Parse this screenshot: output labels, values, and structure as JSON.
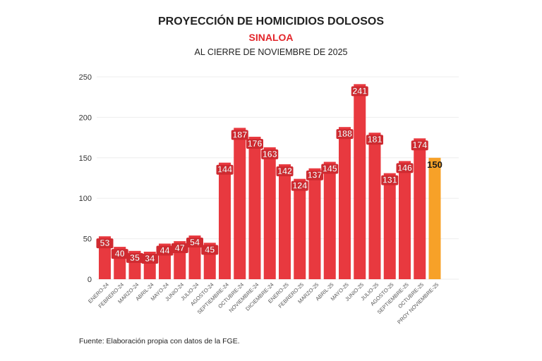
{
  "chart_data": {
    "type": "bar",
    "title": "PROYECCIÓN DE HOMICIDIOS DOLOSOS",
    "subtitle": "SINALOA",
    "subtitle2": "AL CIERRE DE NOVIEMBRE DE 2025",
    "source": "Fuente: Elaboración propia con datos de la FGE.",
    "xlabel": "",
    "ylabel": "",
    "ylim": [
      0,
      250
    ],
    "yticks": [
      0,
      50,
      100,
      150,
      200,
      250
    ],
    "grid": true,
    "categories": [
      "ENERO-24",
      "FEBRERO-24",
      "MARZO-24",
      "ABRIL-24",
      "MAYO-24",
      "JUNIO-24",
      "JULIO-24",
      "AGOSTO-24",
      "SEPTIEMBRE-24",
      "OCTUBRE-24",
      "NOVIEMBRE-24",
      "DICIEMBRE-24",
      "ENERO-25",
      "FEBRERO-25",
      "MARZO-25",
      "ABRIL-25",
      "MAYO-25",
      "JUNIO-25",
      "JULIO-25",
      "AGOSTO-25",
      "SEPTIEMBRE-25",
      "OCTUBRE-25",
      "PROY NOVIEMBRE-25"
    ],
    "values": [
      53,
      40,
      35,
      34,
      44,
      47,
      54,
      45,
      144,
      187,
      176,
      163,
      142,
      124,
      137,
      145,
      188,
      241,
      181,
      131,
      146,
      174,
      150
    ],
    "colors": {
      "actual": "#e8393f",
      "projection": "#f7a128"
    }
  }
}
